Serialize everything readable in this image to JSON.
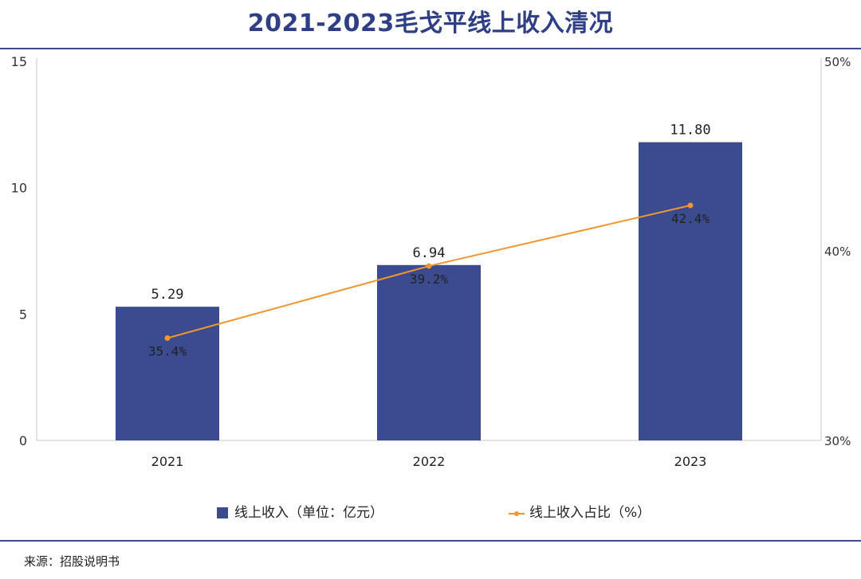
{
  "title": "2021-2023毛戈平线上收入清况",
  "source": "来源：招股说明书",
  "chart_data": {
    "type": "bar",
    "title": "2021-2023毛戈平线上收入清况",
    "categories": [
      "2021",
      "2022",
      "2023"
    ],
    "series": [
      {
        "name": "线上收入（单位：亿元）",
        "type": "bar",
        "axis": "left",
        "color": "#3b4b8f",
        "values": [
          5.29,
          6.94,
          11.8
        ],
        "labels": [
          "5.29",
          "6.94",
          "11.80"
        ]
      },
      {
        "name": "线上收入占比（%）",
        "type": "line",
        "axis": "right",
        "color": "#f0962e",
        "values": [
          35.4,
          39.2,
          42.4
        ],
        "labels": [
          "35.4%",
          "39.2%",
          "42.4%"
        ]
      }
    ],
    "y_left": {
      "min": 0,
      "max": 15,
      "ticks": [
        0,
        5,
        10,
        15
      ],
      "tick_labels": [
        "0",
        "5",
        "10",
        "15"
      ]
    },
    "y_right": {
      "min": 30,
      "max": 50,
      "ticks": [
        30,
        40,
        50
      ],
      "tick_labels": [
        "30%",
        "40%",
        "50%"
      ]
    },
    "legend_position": "bottom",
    "grid": false
  }
}
